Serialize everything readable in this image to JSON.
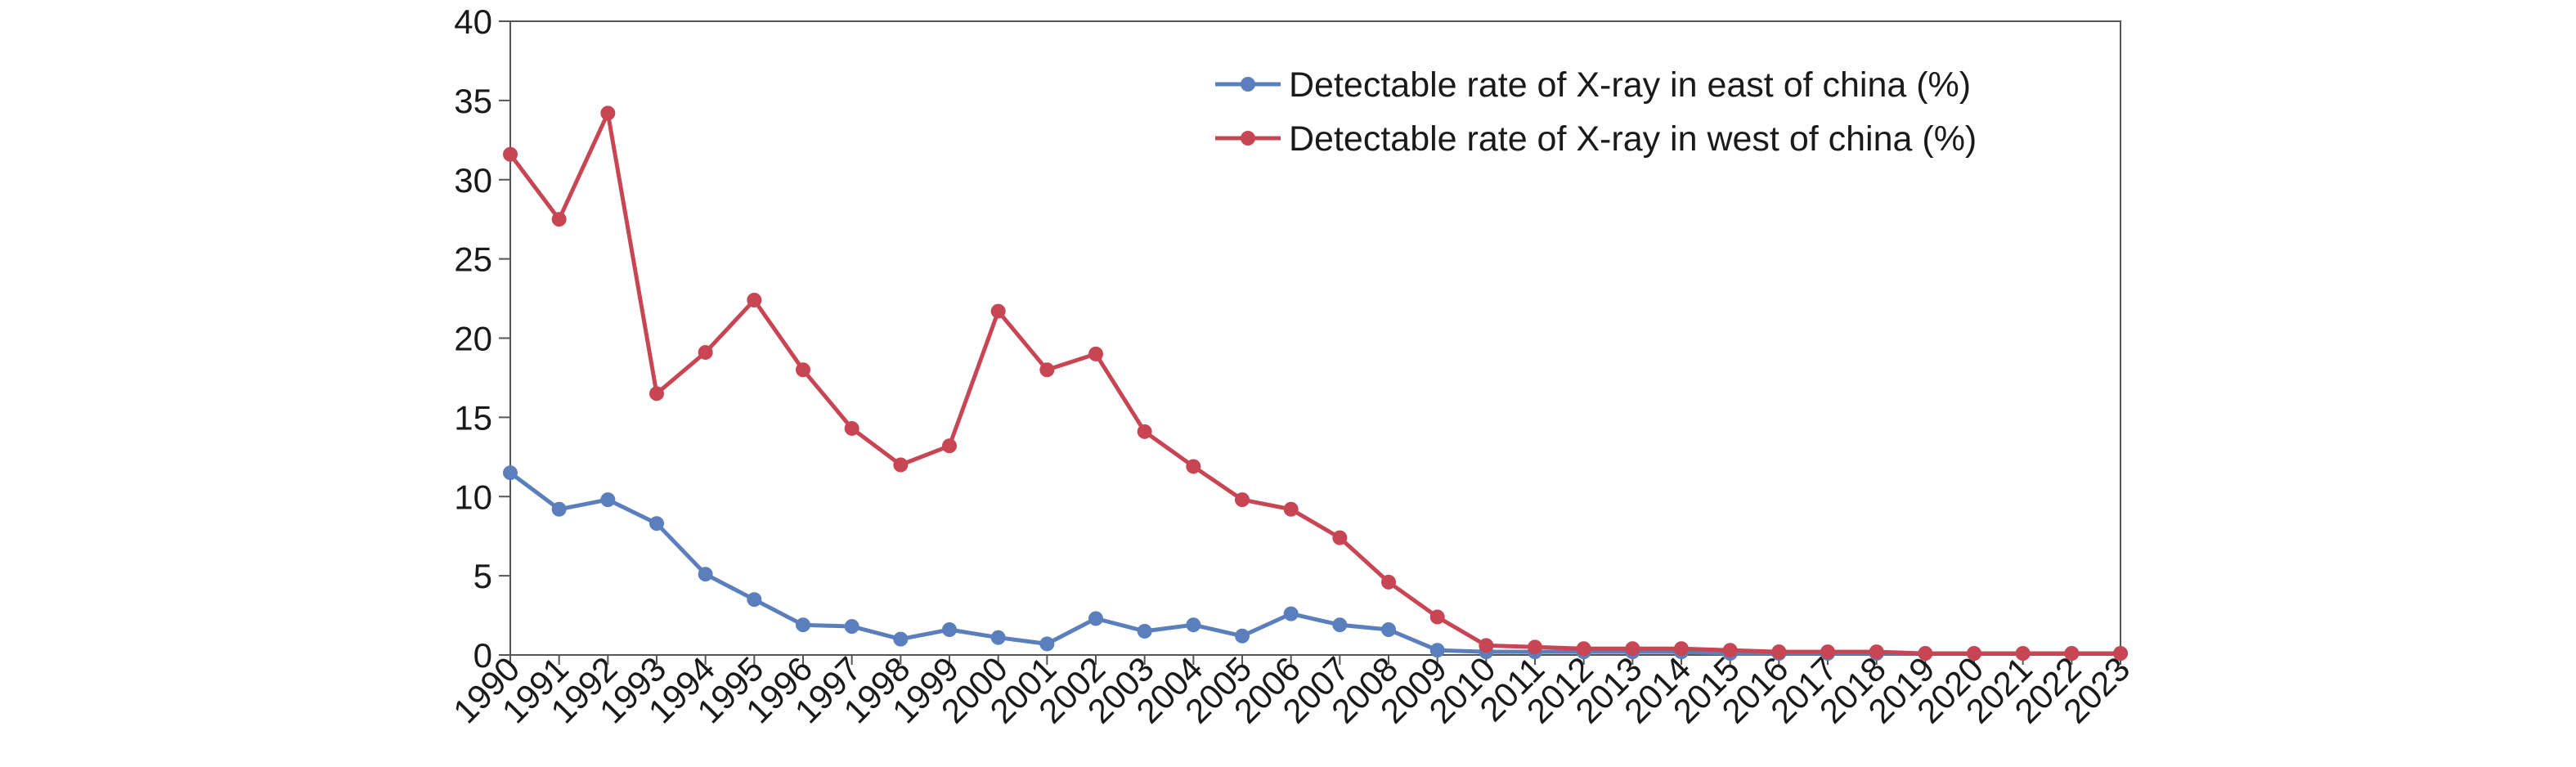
{
  "chart_data": {
    "type": "line",
    "title": "",
    "xlabel": "",
    "ylabel": "",
    "ylim": [
      0,
      40
    ],
    "yticks": [
      0,
      5,
      10,
      15,
      20,
      25,
      30,
      35,
      40
    ],
    "grid": false,
    "legend_position": "top-right",
    "categories": [
      "1990",
      "1991",
      "1992",
      "1993",
      "1994",
      "1995",
      "1996",
      "1997",
      "1998",
      "1999",
      "2000",
      "2001",
      "2002",
      "2003",
      "2004",
      "2005",
      "2006",
      "2007",
      "2008",
      "2009",
      "2010",
      "2011",
      "2012",
      "2013",
      "2014",
      "2015",
      "2016",
      "2017",
      "2018",
      "2019",
      "2020",
      "2021",
      "2022",
      "2023"
    ],
    "series": [
      {
        "name": "Detectable rate of X-ray in east of china (%)",
        "color": "#5b7fbd",
        "values": [
          11.5,
          9.2,
          9.8,
          8.3,
          5.1,
          3.5,
          1.9,
          1.8,
          1.0,
          1.6,
          1.1,
          0.7,
          2.3,
          1.5,
          1.9,
          1.2,
          2.6,
          1.9,
          1.6,
          0.3,
          0.2,
          0.2,
          0.2,
          0.2,
          0.2,
          0.1,
          0.1,
          0.1,
          0.1,
          0.1,
          0.1,
          0.1,
          0.1,
          0.1
        ]
      },
      {
        "name": "Detectable rate of X-ray in west of china (%)",
        "color": "#c84653",
        "values": [
          31.6,
          27.5,
          34.2,
          16.5,
          19.1,
          22.4,
          18.0,
          14.3,
          12.0,
          13.2,
          21.7,
          18.0,
          19.0,
          14.1,
          11.9,
          9.8,
          9.2,
          7.4,
          4.6,
          2.4,
          0.6,
          0.5,
          0.4,
          0.4,
          0.4,
          0.3,
          0.2,
          0.2,
          0.2,
          0.1,
          0.1,
          0.1,
          0.1,
          0.1
        ]
      }
    ]
  }
}
